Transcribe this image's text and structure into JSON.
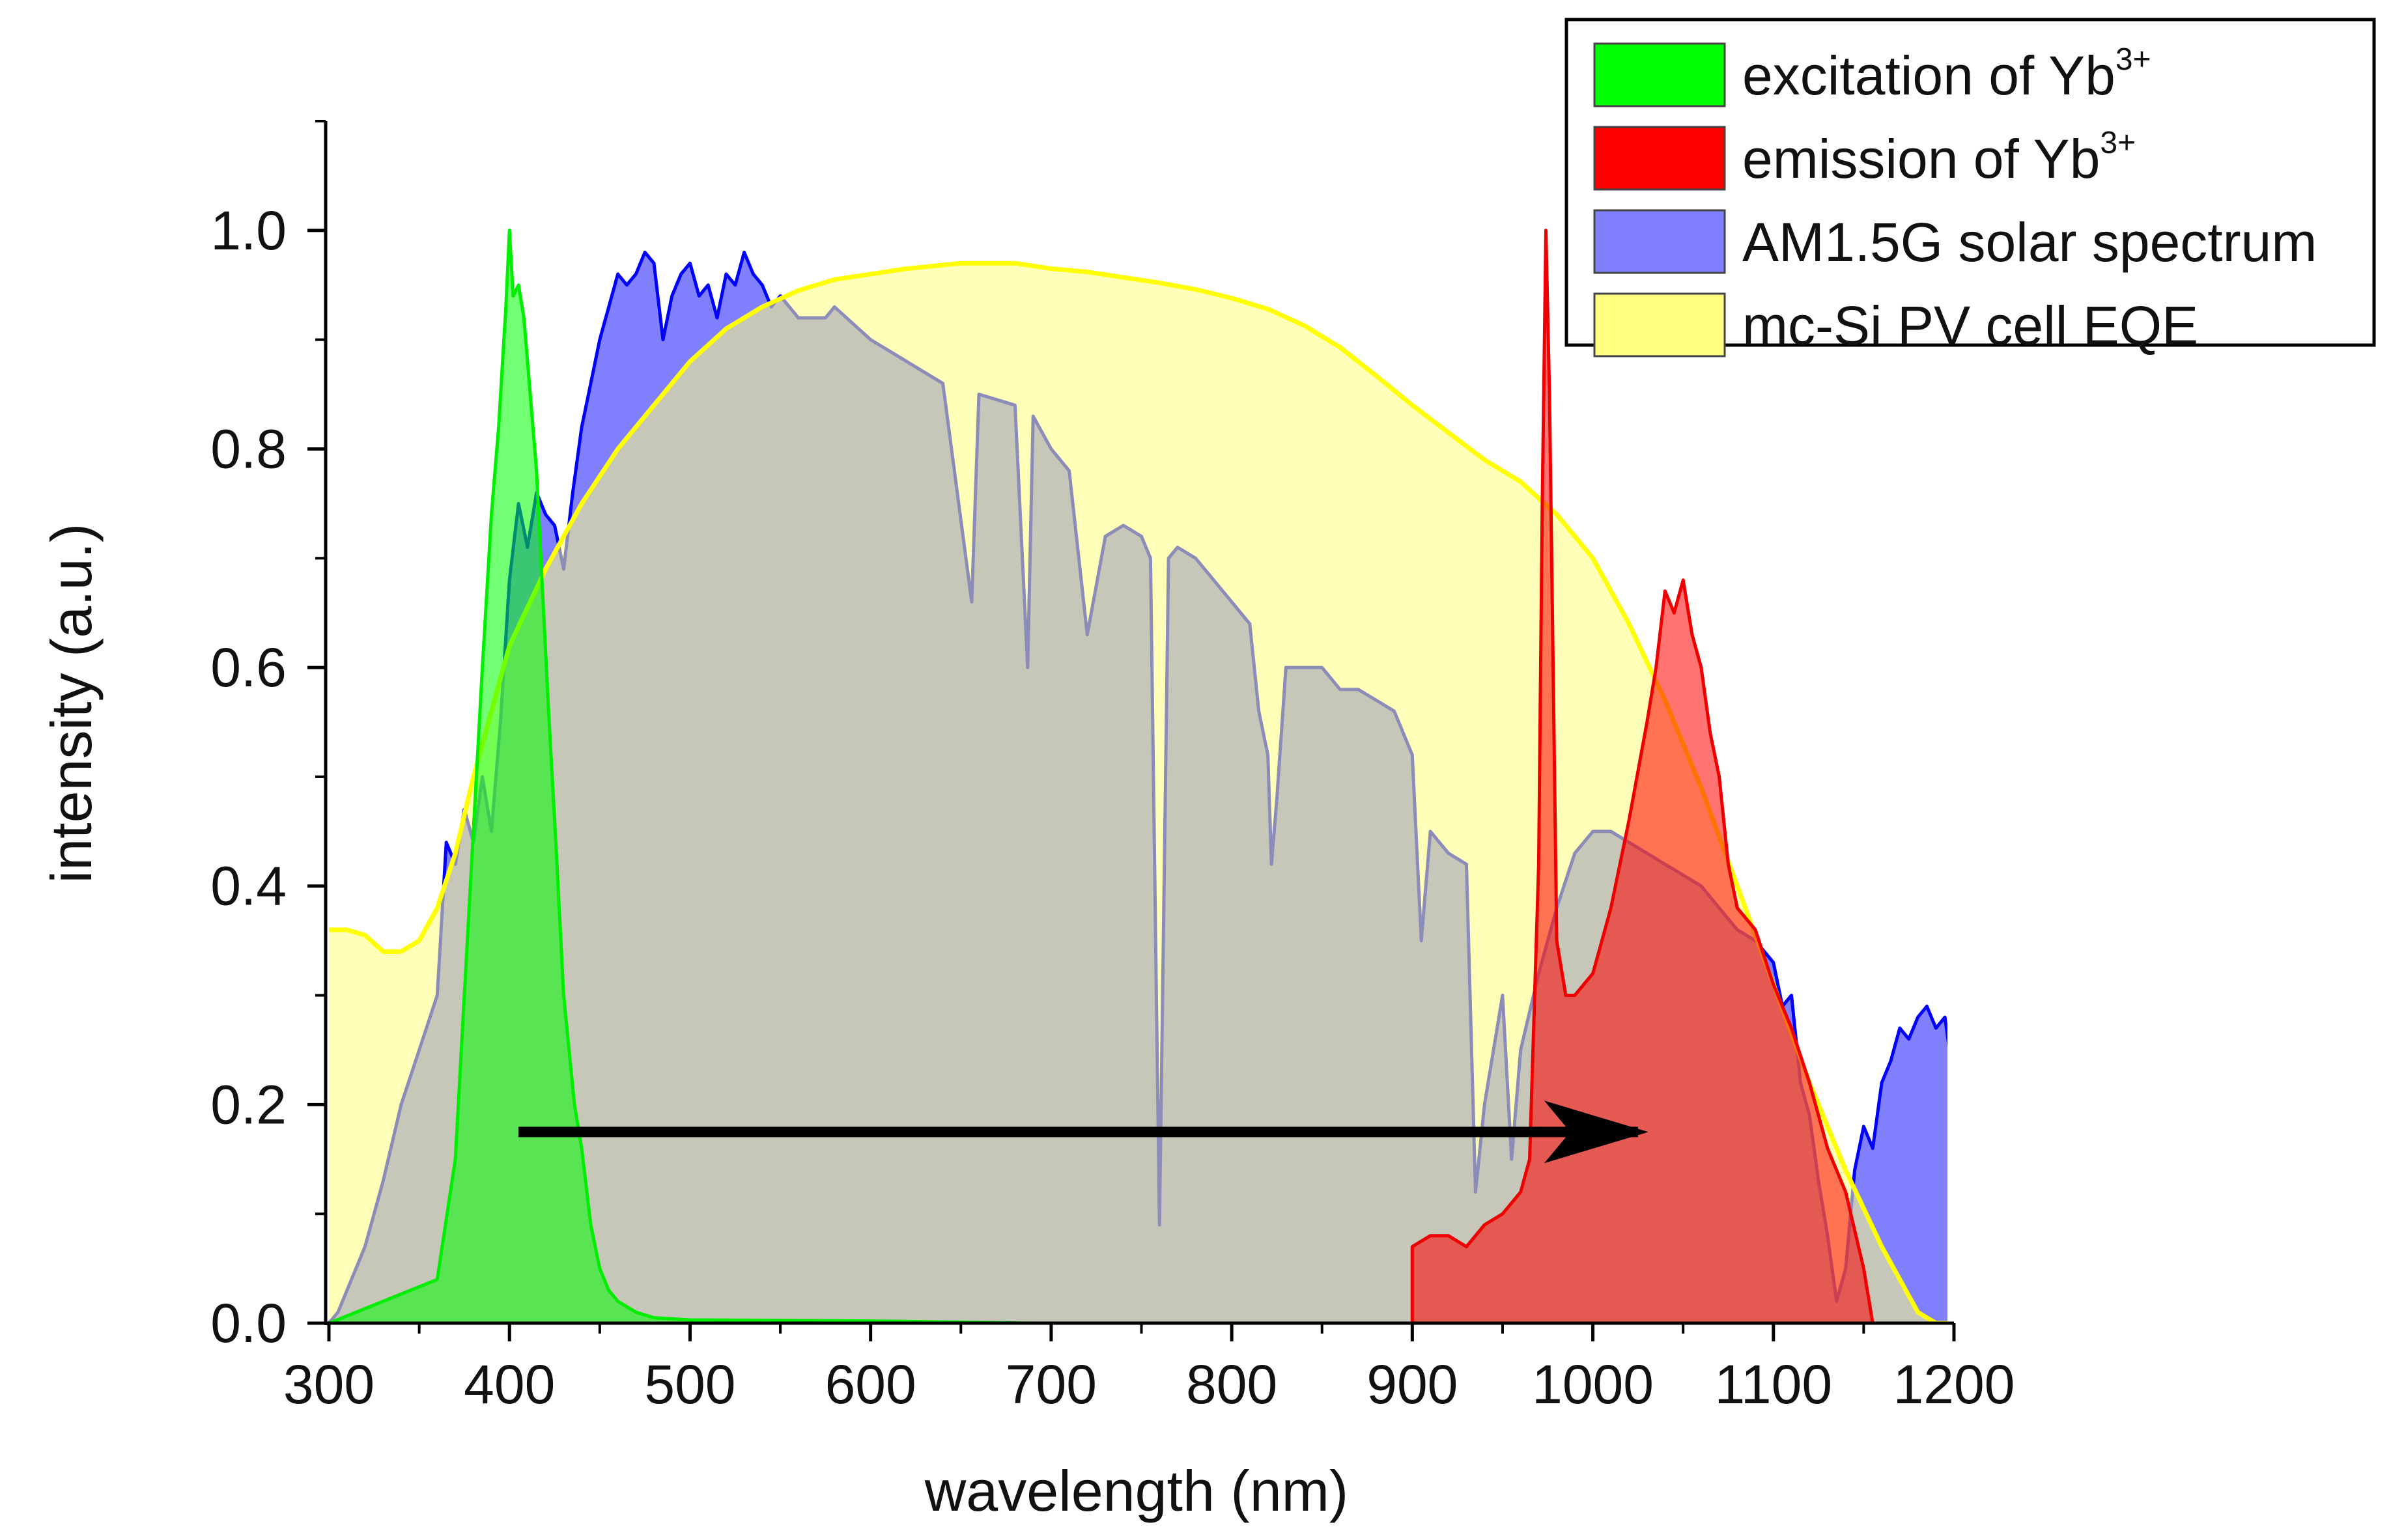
{
  "chart_data": {
    "type": "area",
    "xlabel": "wavelength (nm)",
    "ylabel": "intensity (a.u.)",
    "xlim": [
      300,
      1200
    ],
    "ylim": [
      0,
      1.1
    ],
    "xticks": [
      300,
      400,
      500,
      600,
      700,
      800,
      900,
      1000,
      1100,
      1200
    ],
    "yticks": [
      0.0,
      0.2,
      0.4,
      0.6,
      0.8,
      1.0
    ],
    "ytick_labels": [
      "0.0",
      "0.2",
      "0.4",
      "0.6",
      "0.8",
      "1.0"
    ],
    "legend_position": "top-right",
    "legend": [
      {
        "base": "excitation of Yb",
        "sup": "3+",
        "color": "#00ff00"
      },
      {
        "base": "emission of Yb",
        "sup": "3+",
        "color": "#ff0000"
      },
      {
        "base": "AM1.5G solar spectrum",
        "sup": "",
        "color": "#8080ff"
      },
      {
        "base": "mc-Si PV cell EQE",
        "sup": "",
        "color": "#ffff80"
      }
    ],
    "series": [
      {
        "name": "AM1.5G solar spectrum",
        "fill": "#8080ff",
        "line": "#0000ff",
        "points": [
          [
            300,
            0.0
          ],
          [
            305,
            0.01
          ],
          [
            310,
            0.03
          ],
          [
            320,
            0.07
          ],
          [
            330,
            0.13
          ],
          [
            340,
            0.2
          ],
          [
            350,
            0.25
          ],
          [
            360,
            0.3
          ],
          [
            365,
            0.44
          ],
          [
            370,
            0.42
          ],
          [
            375,
            0.47
          ],
          [
            380,
            0.44
          ],
          [
            385,
            0.5
          ],
          [
            390,
            0.45
          ],
          [
            395,
            0.55
          ],
          [
            400,
            0.68
          ],
          [
            405,
            0.75
          ],
          [
            410,
            0.71
          ],
          [
            415,
            0.76
          ],
          [
            420,
            0.74
          ],
          [
            425,
            0.73
          ],
          [
            430,
            0.69
          ],
          [
            435,
            0.76
          ],
          [
            440,
            0.82
          ],
          [
            445,
            0.86
          ],
          [
            450,
            0.9
          ],
          [
            455,
            0.93
          ],
          [
            460,
            0.96
          ],
          [
            465,
            0.95
          ],
          [
            470,
            0.96
          ],
          [
            475,
            0.98
          ],
          [
            480,
            0.97
          ],
          [
            485,
            0.9
          ],
          [
            490,
            0.94
          ],
          [
            495,
            0.96
          ],
          [
            500,
            0.97
          ],
          [
            505,
            0.94
          ],
          [
            510,
            0.95
          ],
          [
            515,
            0.92
          ],
          [
            520,
            0.96
          ],
          [
            525,
            0.95
          ],
          [
            530,
            0.98
          ],
          [
            535,
            0.96
          ],
          [
            540,
            0.95
          ],
          [
            545,
            0.93
          ],
          [
            550,
            0.94
          ],
          [
            560,
            0.92
          ],
          [
            575,
            0.92
          ],
          [
            580,
            0.93
          ],
          [
            600,
            0.9
          ],
          [
            620,
            0.88
          ],
          [
            640,
            0.86
          ],
          [
            656,
            0.66
          ],
          [
            660,
            0.85
          ],
          [
            680,
            0.84
          ],
          [
            687,
            0.6
          ],
          [
            690,
            0.83
          ],
          [
            700,
            0.8
          ],
          [
            710,
            0.78
          ],
          [
            720,
            0.63
          ],
          [
            730,
            0.72
          ],
          [
            740,
            0.73
          ],
          [
            750,
            0.72
          ],
          [
            755,
            0.7
          ],
          [
            760,
            0.09
          ],
          [
            765,
            0.7
          ],
          [
            770,
            0.71
          ],
          [
            780,
            0.7
          ],
          [
            790,
            0.68
          ],
          [
            800,
            0.66
          ],
          [
            810,
            0.64
          ],
          [
            815,
            0.56
          ],
          [
            820,
            0.52
          ],
          [
            822,
            0.42
          ],
          [
            825,
            0.48
          ],
          [
            830,
            0.6
          ],
          [
            840,
            0.6
          ],
          [
            850,
            0.6
          ],
          [
            860,
            0.58
          ],
          [
            870,
            0.58
          ],
          [
            880,
            0.57
          ],
          [
            890,
            0.56
          ],
          [
            900,
            0.52
          ],
          [
            905,
            0.35
          ],
          [
            910,
            0.45
          ],
          [
            920,
            0.43
          ],
          [
            930,
            0.42
          ],
          [
            935,
            0.12
          ],
          [
            940,
            0.2
          ],
          [
            950,
            0.3
          ],
          [
            955,
            0.15
          ],
          [
            960,
            0.25
          ],
          [
            970,
            0.32
          ],
          [
            980,
            0.38
          ],
          [
            990,
            0.43
          ],
          [
            1000,
            0.45
          ],
          [
            1010,
            0.45
          ],
          [
            1020,
            0.44
          ],
          [
            1030,
            0.43
          ],
          [
            1040,
            0.42
          ],
          [
            1050,
            0.41
          ],
          [
            1060,
            0.4
          ],
          [
            1070,
            0.38
          ],
          [
            1080,
            0.36
          ],
          [
            1090,
            0.35
          ],
          [
            1100,
            0.33
          ],
          [
            1105,
            0.29
          ],
          [
            1110,
            0.3
          ],
          [
            1115,
            0.22
          ],
          [
            1120,
            0.19
          ],
          [
            1125,
            0.13
          ],
          [
            1130,
            0.08
          ],
          [
            1135,
            0.02
          ],
          [
            1140,
            0.05
          ],
          [
            1145,
            0.14
          ],
          [
            1150,
            0.18
          ],
          [
            1155,
            0.16
          ],
          [
            1160,
            0.22
          ],
          [
            1165,
            0.24
          ],
          [
            1170,
            0.27
          ],
          [
            1175,
            0.26
          ],
          [
            1180,
            0.28
          ],
          [
            1185,
            0.29
          ],
          [
            1190,
            0.27
          ],
          [
            1195,
            0.28
          ],
          [
            1200,
            0.22
          ]
        ]
      },
      {
        "name": "mc-Si PV cell EQE",
        "fill": "#ffff80",
        "line": "#ffff00",
        "points": [
          [
            300,
            0.36
          ],
          [
            310,
            0.36
          ],
          [
            320,
            0.355
          ],
          [
            330,
            0.34
          ],
          [
            340,
            0.34
          ],
          [
            350,
            0.35
          ],
          [
            360,
            0.38
          ],
          [
            370,
            0.43
          ],
          [
            380,
            0.5
          ],
          [
            390,
            0.56
          ],
          [
            400,
            0.62
          ],
          [
            420,
            0.69
          ],
          [
            440,
            0.75
          ],
          [
            460,
            0.8
          ],
          [
            480,
            0.84
          ],
          [
            500,
            0.88
          ],
          [
            520,
            0.91
          ],
          [
            540,
            0.93
          ],
          [
            560,
            0.945
          ],
          [
            580,
            0.955
          ],
          [
            600,
            0.96
          ],
          [
            620,
            0.965
          ],
          [
            650,
            0.97
          ],
          [
            680,
            0.97
          ],
          [
            700,
            0.965
          ],
          [
            720,
            0.962
          ],
          [
            740,
            0.957
          ],
          [
            760,
            0.952
          ],
          [
            780,
            0.946
          ],
          [
            800,
            0.938
          ],
          [
            820,
            0.928
          ],
          [
            840,
            0.913
          ],
          [
            860,
            0.893
          ],
          [
            880,
            0.867
          ],
          [
            900,
            0.84
          ],
          [
            920,
            0.815
          ],
          [
            940,
            0.79
          ],
          [
            960,
            0.77
          ],
          [
            980,
            0.74
          ],
          [
            1000,
            0.7
          ],
          [
            1020,
            0.64
          ],
          [
            1040,
            0.57
          ],
          [
            1060,
            0.49
          ],
          [
            1080,
            0.4
          ],
          [
            1100,
            0.31
          ],
          [
            1120,
            0.22
          ],
          [
            1140,
            0.14
          ],
          [
            1160,
            0.07
          ],
          [
            1180,
            0.01
          ],
          [
            1190,
            0.0
          ],
          [
            1200,
            0.0
          ]
        ]
      },
      {
        "name": "excitation of Yb3+",
        "fill": "#00ff00",
        "line": "#00ee00",
        "points": [
          [
            300,
            0.0
          ],
          [
            360,
            0.04
          ],
          [
            370,
            0.15
          ],
          [
            375,
            0.3
          ],
          [
            380,
            0.45
          ],
          [
            385,
            0.6
          ],
          [
            390,
            0.74
          ],
          [
            394,
            0.82
          ],
          [
            398,
            0.93
          ],
          [
            400,
            1.0
          ],
          [
            402,
            0.94
          ],
          [
            405,
            0.95
          ],
          [
            408,
            0.92
          ],
          [
            412,
            0.84
          ],
          [
            415,
            0.78
          ],
          [
            418,
            0.68
          ],
          [
            422,
            0.55
          ],
          [
            426,
            0.43
          ],
          [
            430,
            0.3
          ],
          [
            436,
            0.2
          ],
          [
            440,
            0.16
          ],
          [
            445,
            0.09
          ],
          [
            450,
            0.05
          ],
          [
            455,
            0.03
          ],
          [
            460,
            0.02
          ],
          [
            470,
            0.01
          ],
          [
            480,
            0.005
          ],
          [
            500,
            0.003
          ],
          [
            600,
            0.002
          ],
          [
            690,
            0.0
          ]
        ]
      },
      {
        "name": "emission of Yb3+",
        "fill": "#ff0000",
        "line": "#ee0000",
        "points": [
          [
            900,
            0.0
          ],
          [
            900,
            0.07
          ],
          [
            910,
            0.08
          ],
          [
            920,
            0.08
          ],
          [
            930,
            0.07
          ],
          [
            940,
            0.09
          ],
          [
            950,
            0.1
          ],
          [
            960,
            0.12
          ],
          [
            965,
            0.15
          ],
          [
            970,
            0.42
          ],
          [
            972,
            0.75
          ],
          [
            974,
            1.0
          ],
          [
            976,
            0.85
          ],
          [
            978,
            0.6
          ],
          [
            980,
            0.35
          ],
          [
            985,
            0.3
          ],
          [
            990,
            0.3
          ],
          [
            1000,
            0.32
          ],
          [
            1010,
            0.38
          ],
          [
            1020,
            0.46
          ],
          [
            1030,
            0.55
          ],
          [
            1035,
            0.6
          ],
          [
            1040,
            0.67
          ],
          [
            1045,
            0.65
          ],
          [
            1050,
            0.68
          ],
          [
            1055,
            0.63
          ],
          [
            1060,
            0.6
          ],
          [
            1065,
            0.54
          ],
          [
            1070,
            0.5
          ],
          [
            1075,
            0.42
          ],
          [
            1080,
            0.38
          ],
          [
            1090,
            0.36
          ],
          [
            1100,
            0.31
          ],
          [
            1110,
            0.27
          ],
          [
            1120,
            0.22
          ],
          [
            1130,
            0.16
          ],
          [
            1140,
            0.12
          ],
          [
            1150,
            0.05
          ],
          [
            1155,
            0.0
          ]
        ]
      }
    ],
    "annotations": [
      {
        "type": "arrow",
        "from": [
          405,
          0.175
        ],
        "to": [
          1025,
          0.175
        ]
      }
    ]
  }
}
